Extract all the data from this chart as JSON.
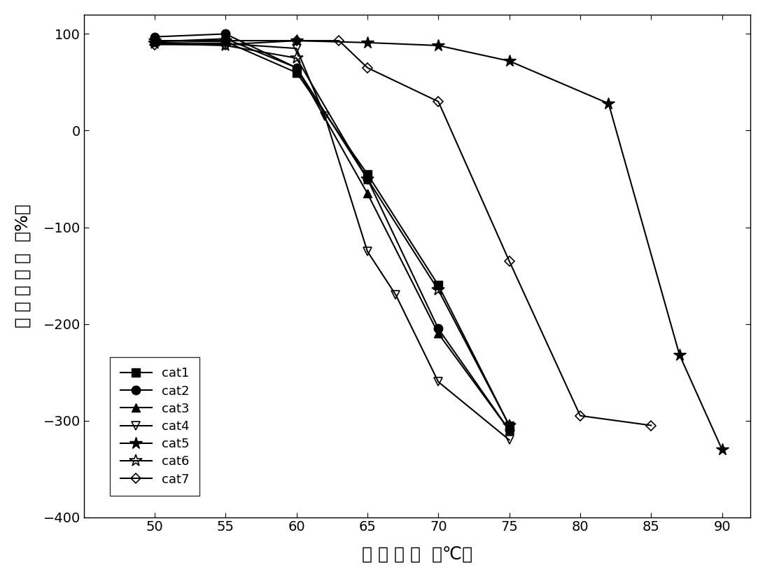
{
  "series": {
    "cat1": {
      "x": [
        50,
        55,
        60,
        65,
        70,
        75
      ],
      "y": [
        93,
        92,
        60,
        -45,
        -160,
        -305
      ],
      "marker": "s",
      "markersize": 8,
      "label": "cat1",
      "color": "black",
      "fillstyle": "full"
    },
    "cat2": {
      "x": [
        50,
        55,
        60,
        65,
        70,
        75
      ],
      "y": [
        97,
        100,
        65,
        -50,
        -205,
        -310
      ],
      "marker": "o",
      "markersize": 9,
      "label": "cat2",
      "color": "black",
      "fillstyle": "full"
    },
    "cat3": {
      "x": [
        50,
        55,
        60,
        65,
        70,
        75
      ],
      "y": [
        92,
        95,
        65,
        -65,
        -210,
        -310
      ],
      "marker": "^",
      "markersize": 9,
      "label": "cat3",
      "color": "black",
      "fillstyle": "full"
    },
    "cat4": {
      "x": [
        50,
        55,
        60,
        62,
        65,
        67,
        70,
        75
      ],
      "y": [
        91,
        90,
        85,
        15,
        -125,
        -170,
        -260,
        -320
      ],
      "marker": "v",
      "markersize": 9,
      "label": "cat4",
      "color": "black",
      "fillstyle": "none"
    },
    "cat5": {
      "x": [
        50,
        55,
        60,
        65,
        70,
        75,
        82,
        87,
        90
      ],
      "y": [
        93,
        93,
        93,
        91,
        88,
        72,
        28,
        -232,
        -330
      ],
      "marker": "*",
      "markersize": 13,
      "label": "cat5",
      "color": "black",
      "fillstyle": "full"
    },
    "cat6": {
      "x": [
        50,
        55,
        60,
        65,
        70,
        75
      ],
      "y": [
        90,
        88,
        75,
        -50,
        -165,
        -305
      ],
      "marker": "*",
      "markersize": 13,
      "label": "cat6",
      "color": "black",
      "fillstyle": "none"
    },
    "cat7": {
      "x": [
        50,
        55,
        60,
        63,
        65,
        70,
        75,
        80,
        85
      ],
      "y": [
        89,
        89,
        93,
        93,
        65,
        30,
        -135,
        -295,
        -305
      ],
      "marker": "D",
      "markersize": 7,
      "label": "cat7",
      "color": "black",
      "fillstyle": "none"
    }
  },
  "xlabel_parts": [
    "反",
    "应",
    "温",
    "度",
    "（℃）"
  ],
  "ylabel_parts": [
    "乙",
    "烯",
    "选",
    "择",
    "性",
    "（%）"
  ],
  "xlim": [
    45,
    92
  ],
  "ylim": [
    -400,
    120
  ],
  "xticks": [
    50,
    55,
    60,
    65,
    70,
    75,
    80,
    85,
    90
  ],
  "yticks": [
    -400,
    -300,
    -200,
    -100,
    0,
    100
  ],
  "background_color": "#ffffff",
  "linewidth": 1.5,
  "xlabel_fontsize": 18,
  "ylabel_fontsize": 18,
  "tick_fontsize": 14,
  "legend_fontsize": 13
}
